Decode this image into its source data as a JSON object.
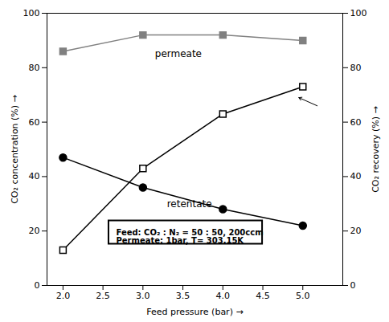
{
  "chart_data": {
    "type": "line",
    "x": [
      2.0,
      3.0,
      4.0,
      5.0
    ],
    "series": [
      {
        "color": "gray",
        "marker": "square",
        "values": [
          86,
          92,
          92,
          90
        ]
      },
      {
        "color": "black",
        "marker": "circle",
        "values": [
          47,
          36,
          28,
          22
        ]
      },
      {
        "color": "black",
        "marker": "open_square",
        "values": [
          13,
          43,
          63,
          73
        ],
        "axis": "y2"
      }
    ],
    "xlabel": "Feed pressure (bar)",
    "ylabel": "CO₂ concentration (%)",
    "y2label": "CO₂ recovery (%)",
    "xlim": [
      1.8,
      5.5
    ],
    "xticks": [
      {
        "value": 2,
        "label": "2.0"
      },
      2.5,
      {
        "value": 3,
        "label": "3.0"
      },
      3.5,
      {
        "value": 4,
        "label": "4.0"
      },
      4.5,
      {
        "value": 5,
        "label": "5.0"
      }
    ],
    "ylim": [
      0,
      100
    ],
    "yticks": [
      0,
      20,
      40,
      60,
      80,
      100
    ],
    "y2lim": [
      0,
      100
    ],
    "y2ticks": [
      0,
      20,
      40,
      60,
      80,
      100
    ],
    "annotations": [
      {
        "text": "permeate",
        "x": 3.15,
        "y": 85
      },
      {
        "text": "retentate",
        "x": 3.3,
        "y": 30
      }
    ],
    "arrow": {
      "x_from": 5.18,
      "y_from": 66,
      "x": 4.95,
      "y": 69
    },
    "annotation_box": [
      "Feed: CO₂ : N₂ = 50 : 50, 200ccm",
      "Permeate: 1bar, T= 303.15K"
    ]
  }
}
